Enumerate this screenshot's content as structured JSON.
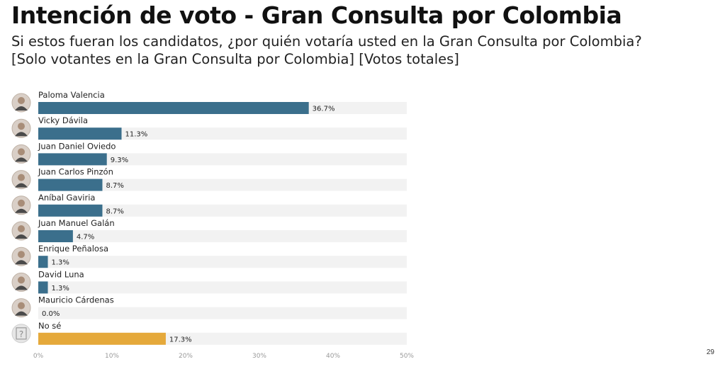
{
  "header": {
    "title": "Intención de voto - Gran Consulta por Colombia",
    "subtitle_line1": "Si estos fueran los candidatos, ¿por quién votaría usted en la Gran Consulta por Colombia?",
    "subtitle_line2": "[Solo votantes en la Gran Consulta por Colombia] [Votos totales]"
  },
  "page_number": "29",
  "colors": {
    "bar": "#3b6f8c",
    "bar_no_se": "#e5a93b",
    "track": "#f2f2f2"
  },
  "chart_data": {
    "type": "bar",
    "orientation": "horizontal",
    "categories": [
      "Paloma Valencia",
      "Vicky Dávila",
      "Juan Daniel Oviedo",
      "Juan Carlos Pinzón",
      "Aníbal Gaviria",
      "Juan Manuel Galán",
      "Enrique Peñalosa",
      "David Luna",
      "Mauricio Cárdenas",
      "No sé"
    ],
    "values": [
      36.7,
      11.3,
      9.3,
      8.7,
      8.7,
      4.7,
      1.3,
      1.3,
      0.0,
      17.3
    ],
    "value_labels": [
      "36.7%",
      "11.3%",
      "9.3%",
      "8.7%",
      "8.7%",
      "4.7%",
      "1.3%",
      "1.3%",
      "0.0%",
      "17.3%"
    ],
    "xlim": [
      0,
      50
    ],
    "xticks": [
      0,
      10,
      20,
      30,
      40,
      50
    ],
    "xtick_labels": [
      "0%",
      "10%",
      "20%",
      "30%",
      "40%",
      "50%"
    ],
    "highlight_category": "No sé",
    "legend": "none",
    "grid": false
  }
}
